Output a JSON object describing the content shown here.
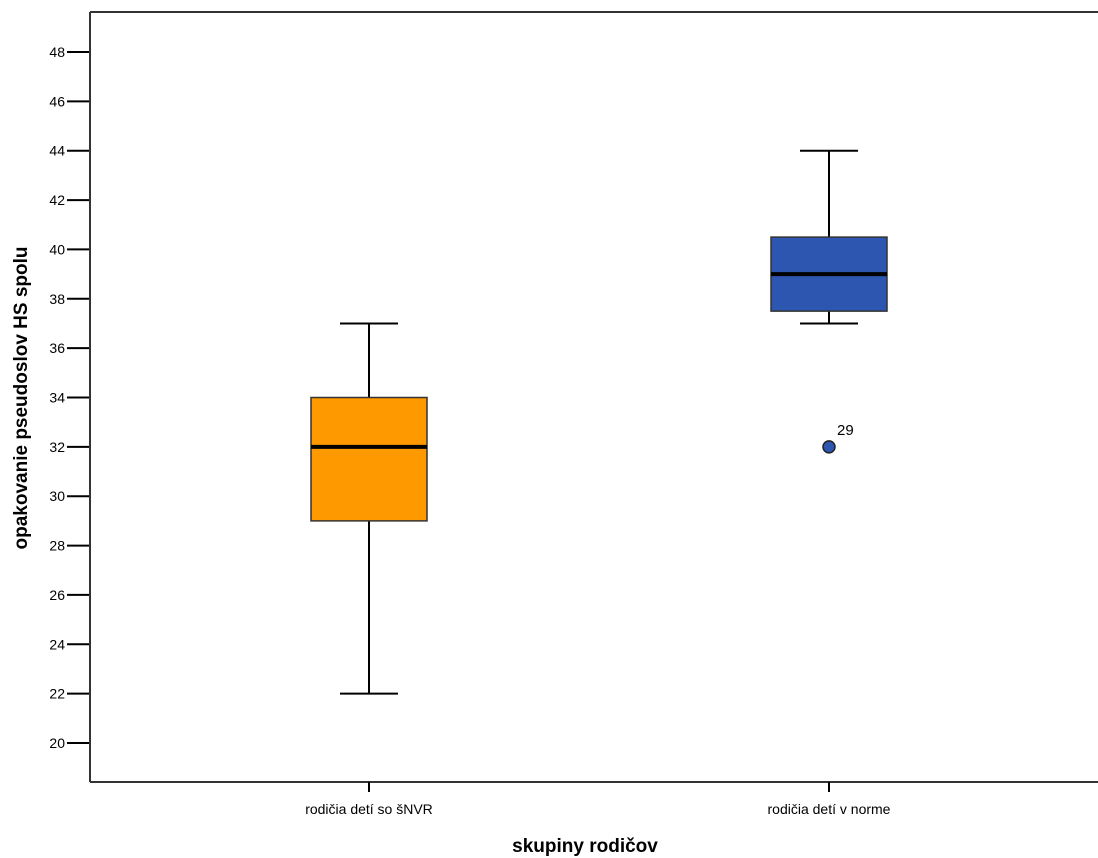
{
  "chart_data": {
    "type": "boxplot",
    "xlabel": "skupiny rodičov",
    "ylabel": "opakovanie pseudoslov HS spolu",
    "ylim": [
      19,
      49.5
    ],
    "yticks": [
      20,
      22,
      24,
      26,
      28,
      30,
      32,
      34,
      36,
      38,
      40,
      42,
      44,
      46,
      48
    ],
    "grid": false,
    "categories": [
      "rodičia detí so šNVR",
      "rodičia detí v norme"
    ],
    "series": [
      {
        "category": "rodičia detí so šNVR",
        "min": 22,
        "q1": 29,
        "median": 32,
        "q3": 34,
        "max": 37,
        "color": "#FF9900",
        "outliers": []
      },
      {
        "category": "rodičia detí v norme",
        "min": 37,
        "q1": 37.5,
        "median": 39,
        "q3": 40.5,
        "max": 44,
        "color": "#2D56B0",
        "outliers": [
          {
            "value": 32,
            "label": "29"
          }
        ]
      }
    ]
  }
}
